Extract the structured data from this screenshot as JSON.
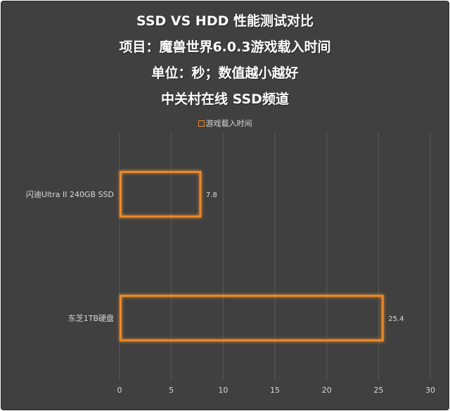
{
  "chart_data": {
    "type": "bar",
    "orientation": "horizontal",
    "title_lines": [
      "SSD VS HDD 性能测试对比",
      "项目：魔兽世界6.0.3游戏载入时间",
      "单位：秒；数值越小越好",
      "中关村在线 SSD频道"
    ],
    "legend": "游戏载入时间",
    "categories": [
      "闪迪Ultra II 240GB SSD",
      "东芝1TB硬盘"
    ],
    "series": [
      {
        "name": "游戏载入时间",
        "values": [
          7.8,
          25.4
        ]
      }
    ],
    "value_labels": [
      "7.8",
      "25.4"
    ],
    "x_ticks": [
      "0",
      "5",
      "10",
      "15",
      "20",
      "25",
      "30"
    ],
    "xlim": [
      0,
      30
    ],
    "grid": true,
    "legend_position": "top",
    "colors": {
      "background": "#404040",
      "bar_edge": "#e98a2c",
      "grid": "#5a5a5a",
      "text": "#d9d9d9"
    }
  }
}
